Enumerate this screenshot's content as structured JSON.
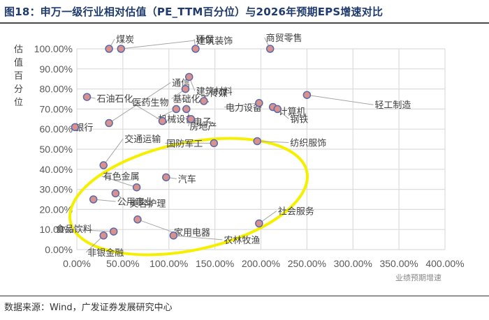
{
  "title": "图18：申万一级行业相对估值（PE_TTM百分位）与2026年预期EPS增速对比",
  "source": "数据来源：Wind，广发证券发展研究中心",
  "chart_data": {
    "type": "scatter",
    "title": "申万一级行业相对估值（PE_TTM百分位）与2026年预期EPS增速对比",
    "xlabel": "业绩预期增速",
    "ylabel": "估值百分位",
    "xlim": [
      0,
      4.0
    ],
    "ylim": [
      0,
      1.0
    ],
    "x_ticks": [
      "0.00%",
      "50.00%",
      "100.00%",
      "150.00%",
      "200.00%",
      "250.00%",
      "300.00%",
      "350.00%",
      "400.00%"
    ],
    "y_ticks": [
      "0.00%",
      "10.00%",
      "20.00%",
      "30.00%",
      "40.00%",
      "50.00%",
      "60.00%",
      "70.00%",
      "80.00%",
      "90.00%",
      "100.00%"
    ],
    "grid": true,
    "marker_color": "#d9918f",
    "marker_edge": "#5a6aa8",
    "annotation": "yellow ellipse highlighting low-valuation industries",
    "points": [
      {
        "name": "煤炭",
        "x": 0.35,
        "y": 1.0
      },
      {
        "name": "建筑装饰",
        "x": 0.48,
        "y": 1.0
      },
      {
        "name": "环保",
        "x": 1.29,
        "y": 1.0
      },
      {
        "name": "商贸零售",
        "x": 2.1,
        "y": 1.0
      },
      {
        "name": "石油石化",
        "x": 0.11,
        "y": 0.76
      },
      {
        "name": "银行",
        "x": -0.02,
        "y": 0.61
      },
      {
        "name": "通信",
        "x": 0.35,
        "y": 0.63
      },
      {
        "name": "医药生物",
        "x": 0.93,
        "y": 0.64
      },
      {
        "name": "建筑材料",
        "x": 1.22,
        "y": 0.86
      },
      {
        "name": "基础化工",
        "x": 1.18,
        "y": 0.8
      },
      {
        "name": "传媒",
        "x": 1.38,
        "y": 0.74
      },
      {
        "name": "机械设备",
        "x": 1.08,
        "y": 0.7
      },
      {
        "name": "电子",
        "x": 1.19,
        "y": 0.7
      },
      {
        "name": "房地产",
        "x": 1.24,
        "y": 0.65
      },
      {
        "name": "电力设备",
        "x": 1.98,
        "y": 0.73
      },
      {
        "name": "计算机",
        "x": 2.13,
        "y": 0.71
      },
      {
        "name": "钢铁",
        "x": 2.18,
        "y": 0.7
      },
      {
        "name": "轻工制造",
        "x": 2.5,
        "y": 0.77
      },
      {
        "name": "交通运输",
        "x": 0.29,
        "y": 0.42
      },
      {
        "name": "国防军工",
        "x": 1.49,
        "y": 0.53
      },
      {
        "name": "纺织服饰",
        "x": 1.96,
        "y": 0.54
      },
      {
        "name": "汽车",
        "x": 0.97,
        "y": 0.36
      },
      {
        "name": "有色金属",
        "x": 0.65,
        "y": 0.31
      },
      {
        "name": "美容护理",
        "x": 0.42,
        "y": 0.28
      },
      {
        "name": "公用事业",
        "x": 0.18,
        "y": 0.25
      },
      {
        "name": "食品饮料",
        "x": 0.4,
        "y": 0.09
      },
      {
        "name": "非银金融",
        "x": 0.29,
        "y": 0.07
      },
      {
        "name": "家用电器",
        "x": 0.66,
        "y": 0.15
      },
      {
        "name": "农林牧渔",
        "x": 1.05,
        "y": 0.07
      },
      {
        "name": "社会服务",
        "x": 1.98,
        "y": 0.13
      }
    ]
  }
}
